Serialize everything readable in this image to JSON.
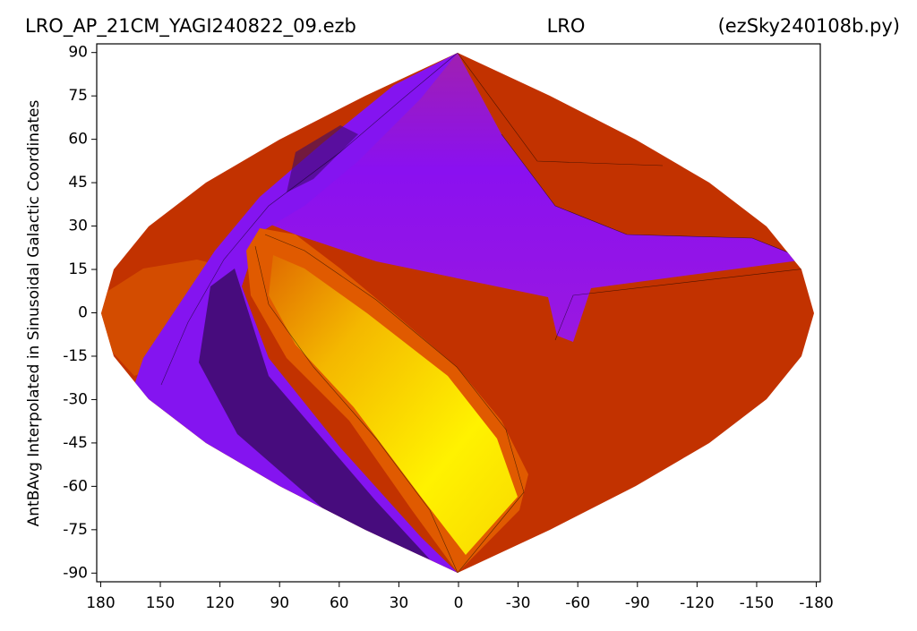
{
  "chart_data": {
    "type": "contour",
    "titles": [
      "LRO_AP_21CM_YAGI240822_09.ezb",
      "LRO",
      "(ezSky240108b.py)"
    ],
    "y_label": "AntBAvg Interpolated in Sinusoidal Galactic Coordinates",
    "xlim": [
      182,
      -182
    ],
    "ylim": [
      -93,
      93
    ],
    "xticks": [
      180,
      150,
      120,
      90,
      60,
      30,
      0,
      -30,
      -60,
      -90,
      -120,
      -150,
      -180
    ],
    "yticks": [
      90,
      75,
      60,
      45,
      30,
      15,
      0,
      -15,
      -30,
      -45,
      -60,
      -75,
      -90
    ]
  }
}
